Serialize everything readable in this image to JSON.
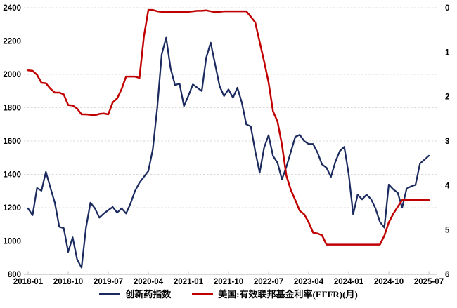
{
  "page": {
    "background": "#ffffff"
  },
  "colors": {
    "index_line": "#1b2a5f",
    "effr_line": "#c00000",
    "gridline": "#d9d9d9",
    "axis_line": "#bfbfbf",
    "label_text": "#000000"
  },
  "legend": {
    "items": [
      {
        "label": "创新药指数",
        "color": "#1b2a5f"
      },
      {
        "label": "美国:有效联邦基金利率(EFFR)(月)",
        "color": "#c00000"
      }
    ],
    "position": "bottom-center"
  },
  "chart_data": {
    "type": "line",
    "title": "",
    "x_unit": "month",
    "x_start": "2018-01",
    "x_end": "2025-07",
    "x_tick_labels": [
      "2018-01",
      "2018-10",
      "2019-07",
      "2020-04",
      "2021-01",
      "2021-10",
      "2022-07",
      "2023-04",
      "2024-01",
      "2024-10",
      "2025-07"
    ],
    "x_tick_month_index": [
      0,
      9,
      18,
      27,
      36,
      45,
      54,
      63,
      72,
      81,
      90
    ],
    "left_axis": {
      "min": 800,
      "max": 2400,
      "step": 200,
      "ticks": [
        2400,
        2200,
        2000,
        1800,
        1600,
        1400,
        1200,
        1000,
        800
      ],
      "series": "创新药指数"
    },
    "right_axis": {
      "min": 0,
      "max": 6,
      "step": 1,
      "inverted": true,
      "ticks": [
        0,
        1,
        2,
        3,
        4,
        5,
        6
      ],
      "series": "美国:有效联邦基金利率(EFFR)(月)"
    },
    "grid": {
      "horizontal": "dashed",
      "vertical": "none"
    },
    "x_months": [
      "2018-01",
      "2018-02",
      "2018-03",
      "2018-04",
      "2018-05",
      "2018-06",
      "2018-07",
      "2018-08",
      "2018-09",
      "2018-10",
      "2018-11",
      "2018-12",
      "2019-01",
      "2019-02",
      "2019-03",
      "2019-04",
      "2019-05",
      "2019-06",
      "2019-07",
      "2019-08",
      "2019-09",
      "2019-10",
      "2019-11",
      "2019-12",
      "2020-01",
      "2020-02",
      "2020-03",
      "2020-04",
      "2020-05",
      "2020-06",
      "2020-07",
      "2020-08",
      "2020-09",
      "2020-10",
      "2020-11",
      "2020-12",
      "2021-01",
      "2021-02",
      "2021-03",
      "2021-04",
      "2021-05",
      "2021-06",
      "2021-07",
      "2021-08",
      "2021-09",
      "2021-10",
      "2021-11",
      "2021-12",
      "2022-01",
      "2022-02",
      "2022-03",
      "2022-04",
      "2022-05",
      "2022-06",
      "2022-07",
      "2022-08",
      "2022-09",
      "2022-10",
      "2022-11",
      "2022-12",
      "2023-01",
      "2023-02",
      "2023-03",
      "2023-04",
      "2023-05",
      "2023-06",
      "2023-07",
      "2023-08",
      "2023-09",
      "2023-10",
      "2023-11",
      "2023-12",
      "2024-01",
      "2024-02",
      "2024-03",
      "2024-04",
      "2024-05",
      "2024-06",
      "2024-07",
      "2024-08",
      "2024-09",
      "2024-10",
      "2024-11",
      "2024-12",
      "2025-01",
      "2025-02",
      "2025-03",
      "2025-04",
      "2025-05",
      "2025-06",
      "2025-07"
    ],
    "series": [
      {
        "name": "创新药指数",
        "axis": "left",
        "color": "#1b2a5f",
        "values": [
          1195,
          1155,
          1318,
          1302,
          1415,
          1320,
          1230,
          1085,
          1077,
          935,
          1022,
          890,
          840,
          1080,
          1230,
          1196,
          1140,
          1165,
          1185,
          1204,
          1170,
          1196,
          1165,
          1225,
          1300,
          1350,
          1385,
          1420,
          1550,
          1800,
          2120,
          2220,
          2035,
          1935,
          1945,
          1810,
          1872,
          1940,
          1920,
          1900,
          2100,
          2190,
          2060,
          1930,
          1870,
          1910,
          1860,
          1920,
          1830,
          1700,
          1688,
          1540,
          1410,
          1560,
          1635,
          1510,
          1470,
          1370,
          1445,
          1535,
          1625,
          1637,
          1600,
          1582,
          1582,
          1530,
          1460,
          1440,
          1385,
          1475,
          1540,
          1565,
          1400,
          1160,
          1278,
          1250,
          1278,
          1252,
          1196,
          1115,
          1080,
          1339,
          1310,
          1290,
          1200,
          1314,
          1328,
          1337,
          1465,
          1488,
          1512
        ]
      },
      {
        "name": "美国:有效联邦基金利率(EFFR)(月)",
        "axis": "right",
        "color": "#c00000",
        "values": [
          1.41,
          1.42,
          1.51,
          1.69,
          1.7,
          1.82,
          1.91,
          1.91,
          1.95,
          2.19,
          2.2,
          2.27,
          2.4,
          2.4,
          2.41,
          2.42,
          2.39,
          2.38,
          2.4,
          2.13,
          2.04,
          1.83,
          1.55,
          1.55,
          1.55,
          1.58,
          0.65,
          0.05,
          0.05,
          0.08,
          0.09,
          0.1,
          0.09,
          0.09,
          0.09,
          0.09,
          0.09,
          0.08,
          0.07,
          0.07,
          0.06,
          0.08,
          0.1,
          0.09,
          0.08,
          0.08,
          0.08,
          0.08,
          0.08,
          0.08,
          0.2,
          0.33,
          0.77,
          1.21,
          1.68,
          2.33,
          2.56,
          3.08,
          3.78,
          4.1,
          4.33,
          4.57,
          4.65,
          4.83,
          5.06,
          5.08,
          5.12,
          5.33,
          5.33,
          5.33,
          5.33,
          5.33,
          5.33,
          5.33,
          5.33,
          5.33,
          5.33,
          5.33,
          5.33,
          5.33,
          5.13,
          4.83,
          4.64,
          4.48,
          4.33,
          4.33,
          4.33,
          4.33,
          4.33,
          4.33,
          4.33
        ]
      }
    ]
  }
}
